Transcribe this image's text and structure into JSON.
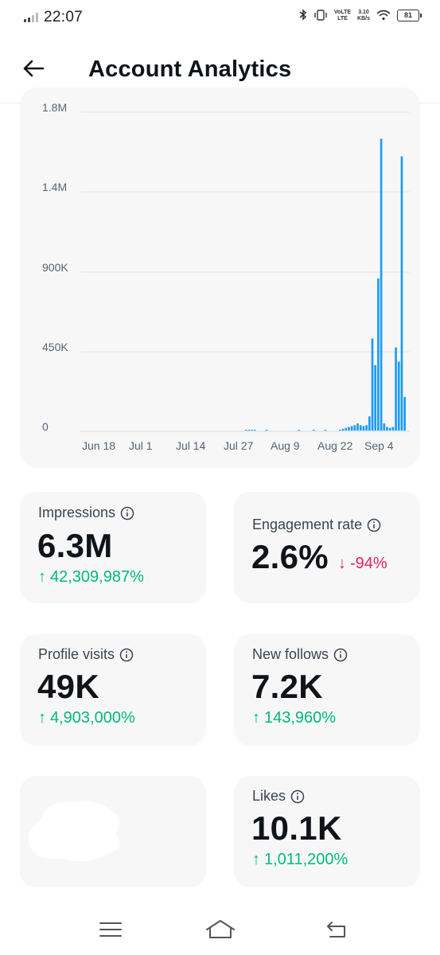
{
  "status_bar": {
    "time": "22:07",
    "volte_label": "VoLTE",
    "lte_label": "LTE",
    "net_speed_value": "3.10",
    "net_speed_unit": "KB/s",
    "battery_level": "81"
  },
  "header": {
    "title": "Account Analytics"
  },
  "chart_data": {
    "type": "bar",
    "color": "#1d9bf0",
    "y_ticks": [
      "1.8M",
      "1.4M",
      "900K",
      "450K",
      "0"
    ],
    "x_ticks": [
      "Jun 18",
      "Jul 1",
      "Jul 14",
      "Jul 27",
      "Aug 9",
      "Aug 22",
      "Sep 4"
    ],
    "ylim": [
      0,
      1800000
    ],
    "grid": true,
    "series": [
      {
        "values": [
          0,
          0,
          0,
          0,
          0,
          0,
          0,
          0,
          0,
          0,
          0,
          0,
          0,
          0,
          0,
          0,
          0,
          0,
          0,
          0,
          0,
          0,
          0,
          0,
          0,
          0,
          0,
          0,
          0,
          0,
          0,
          0,
          0,
          0,
          0,
          0,
          0,
          0,
          0,
          0,
          0,
          0,
          0,
          0,
          0,
          0,
          0,
          0,
          0,
          0,
          0,
          0,
          0,
          0,
          0,
          0,
          1000,
          2000,
          3000,
          1000,
          0,
          0,
          0,
          1000,
          0,
          0,
          0,
          0,
          0,
          0,
          0,
          0,
          0,
          0,
          1000,
          0,
          0,
          0,
          0,
          1000,
          0,
          0,
          0,
          2000,
          0,
          0,
          0,
          0,
          5000,
          10000,
          15000,
          20000,
          25000,
          30000,
          40000,
          30000,
          25000,
          30000,
          80000,
          520000,
          370000,
          860000,
          1650000,
          40000,
          20000,
          15000,
          20000,
          470000,
          390000,
          1550000,
          190000
        ]
      }
    ]
  },
  "stats": {
    "impressions": {
      "label": "Impressions",
      "value": "6.3M",
      "change": "42,309,987%",
      "direction": "up",
      "arrow": "↑"
    },
    "engagement_rate": {
      "label": "Engagement rate",
      "value": "2.6%",
      "change": "-94%",
      "direction": "down",
      "arrow": "↓"
    },
    "profile_visits": {
      "label": "Profile visits",
      "value": "49K",
      "change": "4,903,000%",
      "direction": "up",
      "arrow": "↑"
    },
    "new_follows": {
      "label": "New follows",
      "value": "7.2K",
      "change": "143,960%",
      "direction": "up",
      "arrow": "↑"
    },
    "likes": {
      "label": "Likes",
      "value": "10.1K",
      "change": "1,011,200%",
      "direction": "up",
      "arrow": "↑"
    }
  },
  "colors": {
    "up": "#00ba7c",
    "down": "#e0245e",
    "card_bg": "#f7f7f8",
    "bar": "#1d9bf0"
  },
  "icons": {
    "back": "arrow-left-icon",
    "info": "info-circle-icon",
    "nav_menu": "menu-icon",
    "nav_home": "home-icon",
    "nav_back": "return-icon"
  }
}
